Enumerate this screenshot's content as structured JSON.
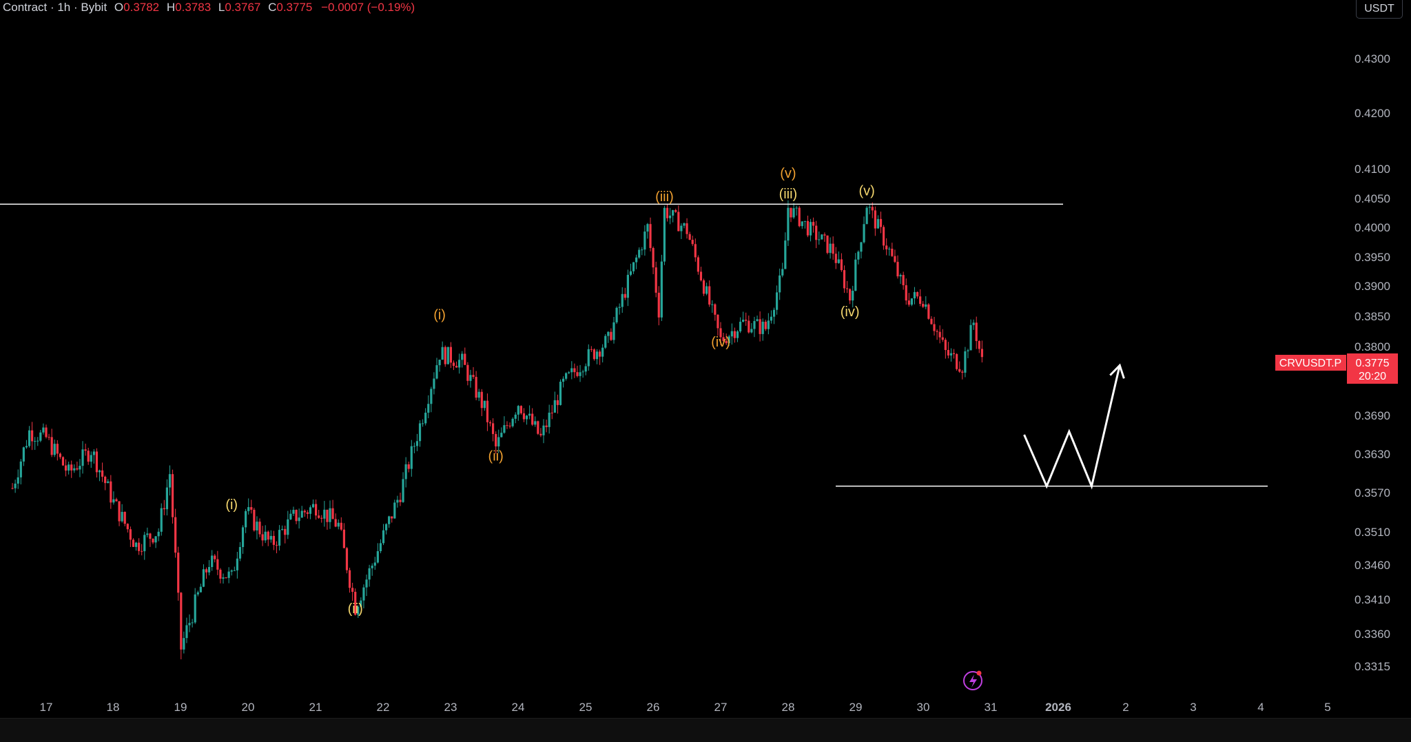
{
  "header": {
    "symbol_label": "Contract · 1h · Bybit",
    "ohlc": [
      {
        "key": "O",
        "value": "0.3782"
      },
      {
        "key": "H",
        "value": "0.3783"
      },
      {
        "key": "L",
        "value": "0.3767"
      },
      {
        "key": "C",
        "value": "0.3775"
      }
    ],
    "change": "−0.0007 (−0.19%)"
  },
  "price_scale": {
    "unit": "USDT",
    "ticks": [
      "0.4300",
      "0.4200",
      "0.4100",
      "0.4050",
      "0.4000",
      "0.3950",
      "0.3900",
      "0.3850",
      "0.3800",
      "0.3690",
      "0.3630",
      "0.3570",
      "0.3510",
      "0.3460",
      "0.3410",
      "0.3360",
      "0.3315"
    ]
  },
  "price_tag": {
    "symbol": "CRVUSDT.P",
    "price": "0.3775",
    "countdown": "20:20"
  },
  "time_axis": {
    "labels": [
      "17",
      "18",
      "19",
      "20",
      "21",
      "22",
      "23",
      "24",
      "25",
      "26",
      "27",
      "28",
      "29",
      "30",
      "31",
      "2026",
      "2",
      "3",
      "4",
      "5"
    ]
  },
  "colors": {
    "background": "#000000",
    "up": "#26a69a",
    "down": "#f23645",
    "text": "#d1d4dc",
    "wave_orange": "#f0a030",
    "wave_yellow": "#f5d76e",
    "drawing": "#ffffff"
  },
  "chart_data": {
    "type": "candlestick",
    "timeframe": "1h",
    "close_path": [
      {
        "date": "Dec 16 12:00",
        "close": 0.3577
      },
      {
        "date": "Dec 16 18:00",
        "close": 0.3665
      },
      {
        "date": "Dec 17 00:00",
        "close": 0.3655
      },
      {
        "date": "Dec 17 08:00",
        "close": 0.36
      },
      {
        "date": "Dec 17 16:00",
        "close": 0.3637
      },
      {
        "date": "Dec 18 00:00",
        "close": 0.3555
      },
      {
        "date": "Dec 18 08:00",
        "close": 0.349
      },
      {
        "date": "Dec 18 16:00",
        "close": 0.3512
      },
      {
        "date": "Dec 18 20:00",
        "close": 0.36
      },
      {
        "date": "Dec 19 00:00",
        "close": 0.334
      },
      {
        "date": "Dec 19 04:00",
        "close": 0.339
      },
      {
        "date": "Dec 19 10:00",
        "close": 0.3465
      },
      {
        "date": "Dec 19 18:00",
        "close": 0.344
      },
      {
        "date": "Dec 19 23:00",
        "close": 0.3542
      },
      {
        "date": "Dec 20 08:00",
        "close": 0.349
      },
      {
        "date": "Dec 20 16:00",
        "close": 0.3532
      },
      {
        "date": "Dec 21 00:00",
        "close": 0.355
      },
      {
        "date": "Dec 21 08:00",
        "close": 0.352
      },
      {
        "date": "Dec 21 14:00",
        "close": 0.34
      },
      {
        "date": "Dec 21 20:00",
        "close": 0.346
      },
      {
        "date": "Dec 22 06:00",
        "close": 0.357
      },
      {
        "date": "Dec 22 14:00",
        "close": 0.369
      },
      {
        "date": "Dec 22 20:00",
        "close": 0.379
      },
      {
        "date": "Dec 23 04:00",
        "close": 0.3775
      },
      {
        "date": "Dec 23 12:00",
        "close": 0.37
      },
      {
        "date": "Dec 23 16:00",
        "close": 0.364
      },
      {
        "date": "Dec 24 00:00",
        "close": 0.371
      },
      {
        "date": "Dec 24 08:00",
        "close": 0.3655
      },
      {
        "date": "Dec 24 16:00",
        "close": 0.374
      },
      {
        "date": "Dec 25 00:00",
        "close": 0.378
      },
      {
        "date": "Dec 25 08:00",
        "close": 0.381
      },
      {
        "date": "Dec 25 16:00",
        "close": 0.392
      },
      {
        "date": "Dec 25 22:00",
        "close": 0.4
      },
      {
        "date": "Dec 26 02:00",
        "close": 0.386
      },
      {
        "date": "Dec 26 04:00",
        "close": 0.403
      },
      {
        "date": "Dec 26 12:00",
        "close": 0.3995
      },
      {
        "date": "Dec 26 20:00",
        "close": 0.387
      },
      {
        "date": "Dec 27 00:00",
        "close": 0.381
      },
      {
        "date": "Dec 27 08:00",
        "close": 0.384
      },
      {
        "date": "Dec 27 16:00",
        "close": 0.383
      },
      {
        "date": "Dec 27 22:00",
        "close": 0.392
      },
      {
        "date": "Dec 28 00:00",
        "close": 0.4035
      },
      {
        "date": "Dec 28 08:00",
        "close": 0.3995
      },
      {
        "date": "Dec 28 16:00",
        "close": 0.396
      },
      {
        "date": "Dec 28 22:00",
        "close": 0.388
      },
      {
        "date": "Dec 29 04:00",
        "close": 0.404
      },
      {
        "date": "Dec 29 12:00",
        "close": 0.396
      },
      {
        "date": "Dec 29 18:00",
        "close": 0.388
      },
      {
        "date": "Dec 30 00:00",
        "close": 0.388
      },
      {
        "date": "Dec 30 08:00",
        "close": 0.379
      },
      {
        "date": "Dec 30 14:00",
        "close": 0.377
      },
      {
        "date": "Dec 30 18:00",
        "close": 0.384
      },
      {
        "date": "Dec 30 21:00",
        "close": 0.3775
      }
    ],
    "horizontal_lines": [
      0.404,
      0.358
    ],
    "projection_path": [
      {
        "date": "Dec 31 12:00",
        "price": 0.366
      },
      {
        "date": "Dec 31 20:00",
        "price": 0.358
      },
      {
        "date": "Jan 1 04:00",
        "price": 0.3665
      },
      {
        "date": "Jan 1 12:00",
        "price": 0.358
      },
      {
        "date": "Jan 1 22:00",
        "price": 0.377
      }
    ],
    "wave_labels": [
      {
        "text": "(i)",
        "date": "Dec 19 18:00",
        "price": 0.3545,
        "color": "yellow"
      },
      {
        "text": "(ii)",
        "date": "Dec 21 14:00",
        "price": 0.339,
        "color": "yellow"
      },
      {
        "text": "(i)",
        "date": "Dec 22 20:00",
        "price": 0.3845,
        "color": "orange"
      },
      {
        "text": "(ii)",
        "date": "Dec 23 16:00",
        "price": 0.362,
        "color": "orange"
      },
      {
        "text": "(iii)",
        "date": "Dec 26 04:00",
        "price": 0.4045,
        "color": "orange"
      },
      {
        "text": "(iv)",
        "date": "Dec 27 00:00",
        "price": 0.38,
        "color": "orange"
      },
      {
        "text": "(v)",
        "date": "Dec 28 00:00",
        "price": 0.4085,
        "color": "orange"
      },
      {
        "text": "(iii)",
        "date": "Dec 28 00:00",
        "price": 0.405,
        "color": "yellow"
      },
      {
        "text": "(v)",
        "date": "Dec 29 04:00",
        "price": 0.4055,
        "color": "yellow"
      },
      {
        "text": "(iv)",
        "date": "Dec 28 22:00",
        "price": 0.385,
        "color": "yellow"
      }
    ],
    "ylim": [
      0.33,
      0.435
    ],
    "grid": false
  }
}
